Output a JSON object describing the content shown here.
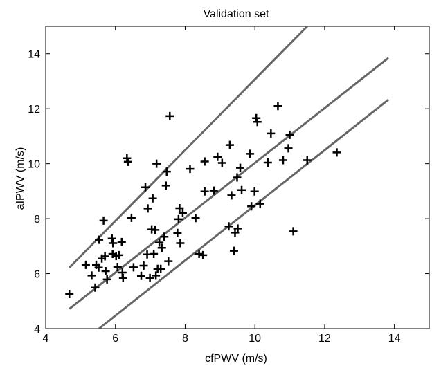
{
  "chart_data": {
    "type": "scatter",
    "title": "Validation set",
    "xlabel": "cfPWV (m/s)",
    "ylabel": "aIPWV (m/s)",
    "xlim": [
      4,
      15
    ],
    "ylim": [
      4,
      15
    ],
    "xticks": [
      4,
      6,
      8,
      10,
      12,
      14
    ],
    "yticks": [
      4,
      6,
      8,
      10,
      12,
      14
    ],
    "grid": false,
    "legend": "none",
    "colors": {
      "points": "#000000",
      "lines": "#666666",
      "axes": "#000000"
    },
    "marker": "plus",
    "points": [
      [
        4.68,
        5.26
      ],
      [
        5.15,
        6.32
      ],
      [
        5.32,
        5.93
      ],
      [
        5.42,
        5.49
      ],
      [
        5.45,
        6.32
      ],
      [
        5.52,
        6.22
      ],
      [
        5.53,
        7.23
      ],
      [
        5.61,
        6.55
      ],
      [
        5.66,
        7.93
      ],
      [
        5.7,
        6.63
      ],
      [
        5.72,
        6.09
      ],
      [
        5.76,
        5.79
      ],
      [
        5.9,
        7.28
      ],
      [
        5.92,
        6.72
      ],
      [
        5.93,
        7.11
      ],
      [
        6.02,
        6.64
      ],
      [
        6.06,
        6.24
      ],
      [
        6.1,
        6.67
      ],
      [
        6.18,
        7.15
      ],
      [
        6.2,
        6.04
      ],
      [
        6.22,
        5.84
      ],
      [
        6.33,
        10.2
      ],
      [
        6.36,
        10.07
      ],
      [
        6.46,
        8.03
      ],
      [
        6.52,
        6.23
      ],
      [
        6.74,
        5.92
      ],
      [
        6.81,
        6.29
      ],
      [
        6.86,
        9.14
      ],
      [
        6.91,
        6.7
      ],
      [
        6.93,
        8.37
      ],
      [
        6.99,
        5.84
      ],
      [
        7.04,
        7.61
      ],
      [
        7.07,
        8.74
      ],
      [
        7.1,
        6.72
      ],
      [
        7.14,
        7.59
      ],
      [
        7.16,
        5.93
      ],
      [
        7.18,
        10.0
      ],
      [
        7.21,
        6.17
      ],
      [
        7.26,
        7.13
      ],
      [
        7.3,
        6.17
      ],
      [
        7.33,
        6.94
      ],
      [
        7.4,
        7.34
      ],
      [
        7.45,
        9.2
      ],
      [
        7.47,
        9.71
      ],
      [
        7.52,
        6.45
      ],
      [
        7.56,
        11.73
      ],
      [
        7.78,
        7.48
      ],
      [
        7.81,
        7.98
      ],
      [
        7.84,
        8.38
      ],
      [
        7.86,
        7.11
      ],
      [
        7.93,
        8.21
      ],
      [
        8.14,
        9.81
      ],
      [
        8.3,
        8.02
      ],
      [
        8.4,
        6.72
      ],
      [
        8.51,
        6.67
      ],
      [
        8.56,
        10.08
      ],
      [
        8.56,
        8.99
      ],
      [
        8.82,
        9.02
      ],
      [
        8.93,
        10.25
      ],
      [
        9.06,
        10.03
      ],
      [
        9.25,
        7.72
      ],
      [
        9.28,
        10.68
      ],
      [
        9.33,
        8.85
      ],
      [
        9.4,
        6.83
      ],
      [
        9.43,
        7.49
      ],
      [
        9.49,
        9.5
      ],
      [
        9.51,
        7.64
      ],
      [
        9.58,
        9.85
      ],
      [
        9.62,
        9.04
      ],
      [
        9.86,
        10.36
      ],
      [
        9.9,
        8.45
      ],
      [
        9.99,
        8.99
      ],
      [
        10.04,
        11.66
      ],
      [
        10.07,
        11.52
      ],
      [
        10.15,
        8.54
      ],
      [
        10.37,
        10.04
      ],
      [
        10.46,
        11.1
      ],
      [
        10.66,
        12.1
      ],
      [
        10.81,
        10.13
      ],
      [
        10.96,
        10.56
      ],
      [
        11.0,
        11.05
      ],
      [
        11.1,
        7.54
      ],
      [
        11.5,
        10.13
      ],
      [
        12.35,
        10.41
      ]
    ],
    "reference_lines": [
      {
        "from": [
          4.68,
          6.22
        ],
        "to": [
          11.5,
          15.0
        ]
      },
      {
        "from": [
          4.68,
          4.72
        ],
        "to": [
          13.83,
          13.85
        ]
      },
      {
        "from": [
          5.53,
          4.0
        ],
        "to": [
          13.83,
          12.33
        ]
      }
    ]
  }
}
